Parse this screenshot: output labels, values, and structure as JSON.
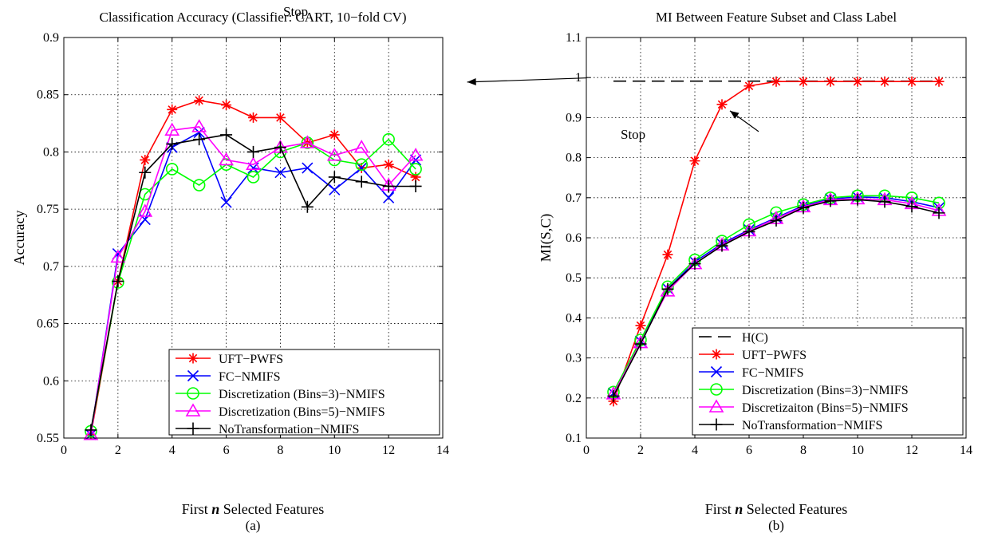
{
  "chart_data": [
    {
      "type": "line",
      "title": "Classification Accuracy (Classifier: CART, 10−fold CV)",
      "xlabel_prefix": "First ",
      "xlabel_var": "n",
      "xlabel_suffix": " Selected Features",
      "ylabel": "Accuracy",
      "caption": "(a)",
      "xlim": [
        0,
        14
      ],
      "ylim": [
        0.55,
        0.9
      ],
      "xticks": [
        0,
        2,
        4,
        6,
        8,
        10,
        12,
        14
      ],
      "yticks": [
        0.55,
        0.6,
        0.65,
        0.7,
        0.75,
        0.8,
        0.85,
        0.9
      ],
      "grid": true,
      "legend_position": "bottom-right",
      "x": [
        1,
        2,
        3,
        4,
        5,
        6,
        7,
        8,
        9,
        10,
        11,
        12,
        13
      ],
      "series": [
        {
          "name": "UFT−PWFS",
          "color": "#ff0000",
          "marker": "star",
          "values": [
            0.553,
            0.687,
            0.793,
            0.837,
            0.845,
            0.841,
            0.83,
            0.83,
            0.808,
            0.815,
            0.786,
            0.789,
            0.778
          ]
        },
        {
          "name": "FC−NMIFS",
          "color": "#0000ff",
          "marker": "x",
          "values": [
            0.553,
            0.711,
            0.741,
            0.804,
            0.817,
            0.756,
            0.786,
            0.782,
            0.786,
            0.767,
            0.786,
            0.76,
            0.793
          ]
        },
        {
          "name": "Discretization (Bins=3)−NMIFS",
          "color": "#00ff00",
          "marker": "circle",
          "values": [
            0.556,
            0.686,
            0.763,
            0.785,
            0.771,
            0.789,
            0.778,
            0.8,
            0.808,
            0.793,
            0.789,
            0.811,
            0.785
          ]
        },
        {
          "name": "Discretization (Bins=5)−NMIFS",
          "color": "#ff00ff",
          "marker": "triangle",
          "values": [
            0.553,
            0.708,
            0.748,
            0.819,
            0.822,
            0.793,
            0.789,
            0.804,
            0.808,
            0.797,
            0.804,
            0.771,
            0.797
          ]
        },
        {
          "name": "NoTransformation−NMIFS",
          "color": "#000000",
          "marker": "plus",
          "values": [
            0.557,
            0.687,
            0.782,
            0.807,
            0.811,
            0.815,
            0.8,
            0.804,
            0.752,
            0.778,
            0.774,
            0.77,
            0.77
          ]
        }
      ],
      "annotations": [
        {
          "text": "Stop",
          "x": 5,
          "y": 0.845
        }
      ]
    },
    {
      "type": "line",
      "title": "MI Between Feature Subset and Class Label",
      "xlabel_prefix": "First ",
      "xlabel_var": "n",
      "xlabel_suffix": " Selected Features",
      "ylabel": "MI(S,C)",
      "caption": "(b)",
      "xlim": [
        0,
        14
      ],
      "ylim": [
        0.1,
        1.1
      ],
      "xticks": [
        0,
        2,
        4,
        6,
        8,
        10,
        12,
        14
      ],
      "yticks": [
        0.1,
        0.2,
        0.3,
        0.4,
        0.5,
        0.6,
        0.7,
        0.8,
        0.9,
        1,
        1.1
      ],
      "grid": true,
      "legend_position": "bottom-right",
      "x": [
        1,
        2,
        3,
        4,
        5,
        6,
        7,
        8,
        9,
        10,
        11,
        12,
        13
      ],
      "reference_line": {
        "name": "H(C)",
        "color": "#000000",
        "y": 0.991,
        "x_range": [
          1,
          13
        ]
      },
      "series": [
        {
          "name": "UFT−PWFS",
          "color": "#ff0000",
          "marker": "star",
          "values": [
            0.192,
            0.381,
            0.558,
            0.792,
            0.933,
            0.979,
            0.99,
            0.99,
            0.99,
            0.99,
            0.99,
            0.99,
            0.99
          ]
        },
        {
          "name": "FC−NMIFS",
          "color": "#0000ff",
          "marker": "x",
          "values": [
            0.212,
            0.342,
            0.473,
            0.54,
            0.585,
            0.62,
            0.65,
            0.68,
            0.697,
            0.702,
            0.7,
            0.69,
            0.675
          ]
        },
        {
          "name": "Discretization (Bins=3)−NMIFS",
          "color": "#00ff00",
          "marker": "circle",
          "values": [
            0.215,
            0.345,
            0.478,
            0.545,
            0.592,
            0.633,
            0.663,
            0.683,
            0.7,
            0.705,
            0.705,
            0.7,
            0.687
          ]
        },
        {
          "name": "Discretizaiton (Bins=5)−NMIFS",
          "color": "#ff00ff",
          "marker": "triangle",
          "values": [
            0.21,
            0.338,
            0.467,
            0.535,
            0.582,
            0.617,
            0.648,
            0.677,
            0.695,
            0.697,
            0.695,
            0.685,
            0.668
          ]
        },
        {
          "name": "NoTransformation−NMIFS",
          "color": "#000000",
          "marker": "plus",
          "values": [
            0.205,
            0.335,
            0.472,
            0.535,
            0.58,
            0.615,
            0.643,
            0.675,
            0.692,
            0.695,
            0.69,
            0.678,
            0.662
          ]
        }
      ],
      "annotations": [
        {
          "text": "Stop",
          "x": 5,
          "y": 0.933
        }
      ]
    }
  ]
}
